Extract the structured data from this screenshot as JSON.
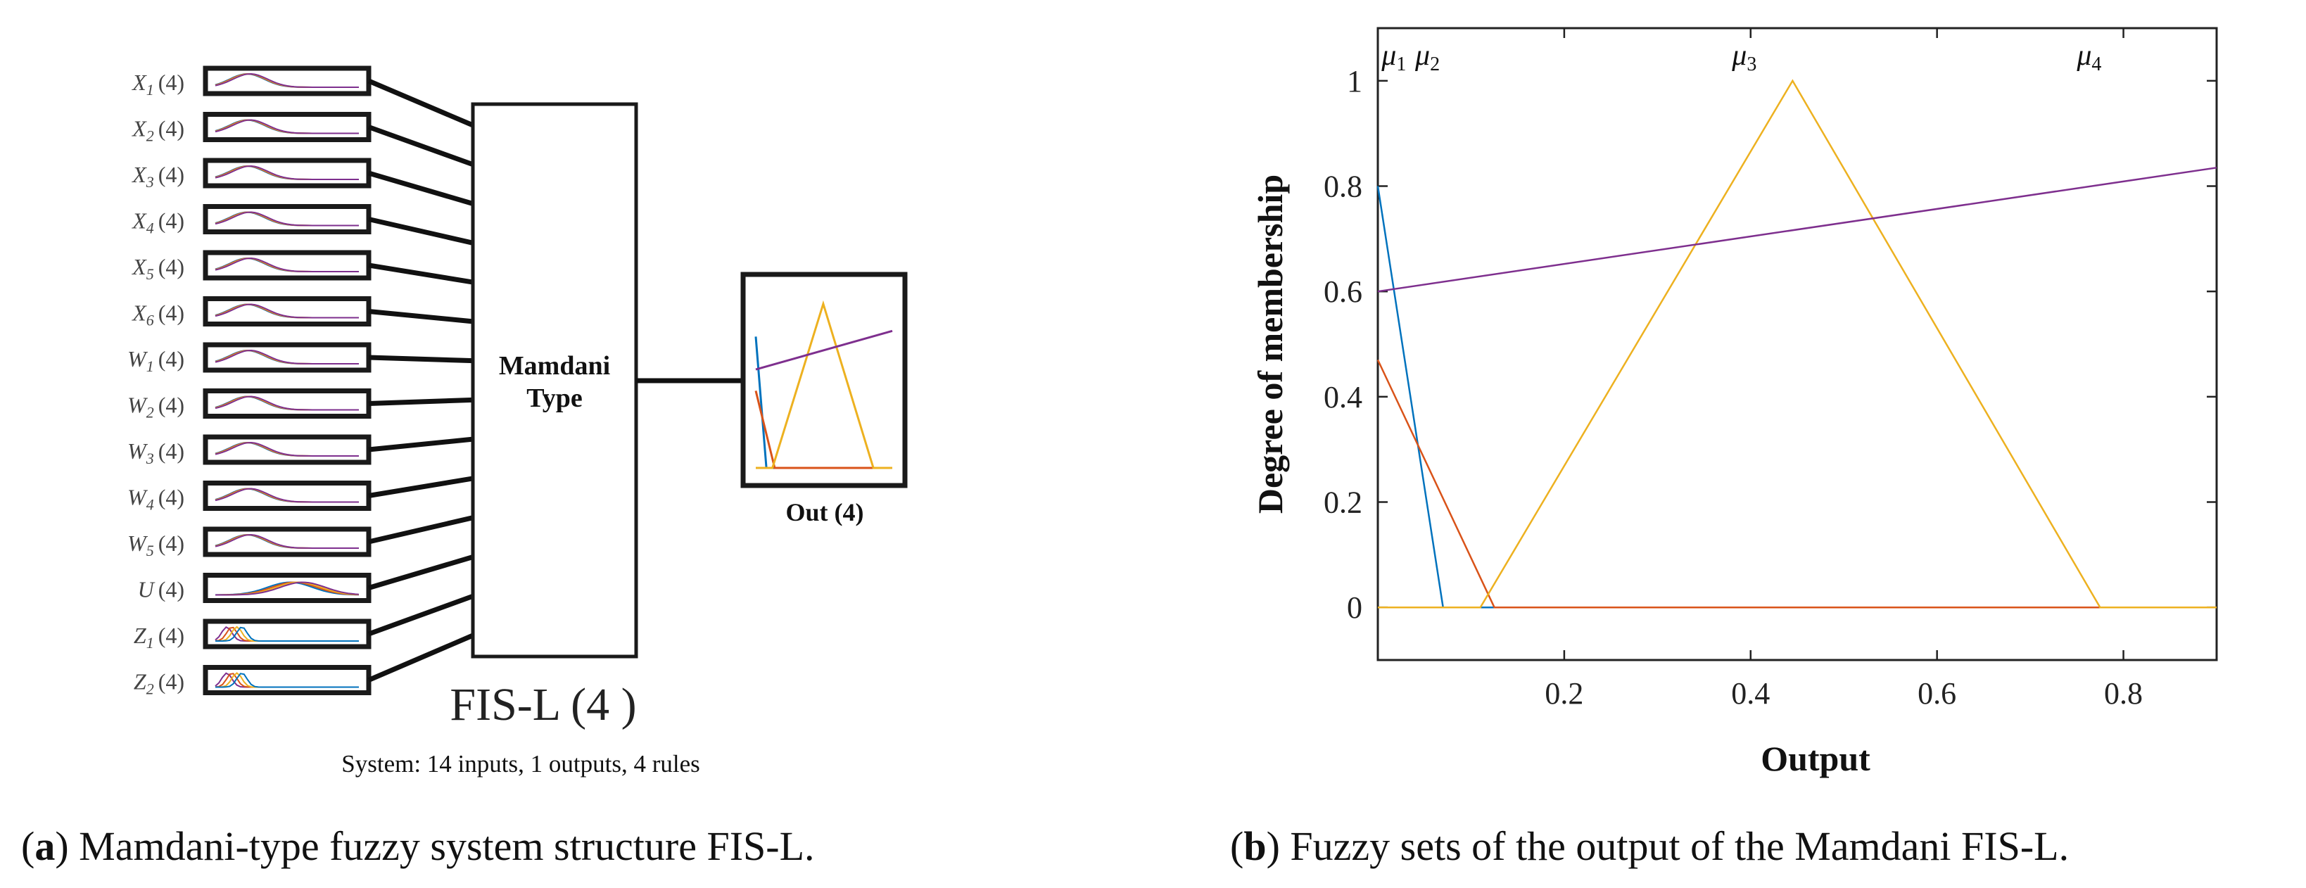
{
  "panel_a": {
    "inputs": [
      {
        "sym": "X",
        "sub": "1",
        "count": "(4)"
      },
      {
        "sym": "X",
        "sub": "2",
        "count": "(4)"
      },
      {
        "sym": "X",
        "sub": "3",
        "count": "(4)"
      },
      {
        "sym": "X",
        "sub": "4",
        "count": "(4)"
      },
      {
        "sym": "X",
        "sub": "5",
        "count": "(4)"
      },
      {
        "sym": "X",
        "sub": "6",
        "count": "(4)"
      },
      {
        "sym": "W",
        "sub": "1",
        "count": "(4)"
      },
      {
        "sym": "W",
        "sub": "2",
        "count": "(4)"
      },
      {
        "sym": "W",
        "sub": "3",
        "count": "(4)"
      },
      {
        "sym": "W",
        "sub": "4",
        "count": "(4)"
      },
      {
        "sym": "W",
        "sub": "5",
        "count": "(4)"
      },
      {
        "sym": "U",
        "sub": "",
        "count": "(4)"
      },
      {
        "sym": "Z",
        "sub": "1",
        "count": "(4)"
      },
      {
        "sym": "Z",
        "sub": "2",
        "count": "(4)"
      }
    ],
    "engine_line1": "Mamdani",
    "engine_line2": "Type",
    "output_label": "Out (4)",
    "system_name": "FIS-L (4 )",
    "system_summary": "System: 14 inputs, 1 outputs, 4 rules",
    "caption_letter": "a",
    "caption_text": " Mamdani-type fuzzy system structure FIS-L."
  },
  "panel_b": {
    "caption_letter": "b",
    "caption_text": " Fuzzy sets of the output of the Mamdani FIS-L."
  },
  "colors": {
    "blue": "#0072BD",
    "red": "#D95319",
    "yellow": "#EDB120",
    "purple": "#7E2F8E"
  },
  "chart_data": {
    "type": "line",
    "xlabel": "Output",
    "ylabel": "Degree of membership",
    "xlim": [
      0,
      0.9
    ],
    "ylim": [
      -0.1,
      1.1
    ],
    "xticks": [
      0.2,
      0.4,
      0.6,
      0.8
    ],
    "xtick_labels": [
      "0.2",
      "0.4",
      "0.6",
      "0.8"
    ],
    "yticks": [
      0,
      0.2,
      0.4,
      0.6,
      0.8,
      1
    ],
    "ytick_labels": [
      "0",
      "0.2",
      "0.4",
      "0.6",
      "0.8",
      "1"
    ],
    "grid": false,
    "annotations": [
      {
        "sym": "μ",
        "sub": "1",
        "x": 0.004
      },
      {
        "sym": "μ",
        "sub": "2",
        "x": 0.04
      },
      {
        "sym": "μ",
        "sub": "3",
        "x": 0.38
      },
      {
        "sym": "μ",
        "sub": "4",
        "x": 0.75
      }
    ],
    "series": [
      {
        "name": "mu1",
        "color_key": "blue",
        "x": [
          0,
          0.07,
          0.9
        ],
        "y": [
          0.8,
          0,
          0
        ]
      },
      {
        "name": "mu2",
        "color_key": "red",
        "x": [
          0,
          0.125,
          0.9
        ],
        "y": [
          0.47,
          0,
          0
        ]
      },
      {
        "name": "mu3",
        "color_key": "yellow",
        "x": [
          0,
          0.11,
          0.445,
          0.775,
          0.9
        ],
        "y": [
          0,
          0,
          1,
          0,
          0
        ]
      },
      {
        "name": "mu4",
        "color_key": "purple",
        "x": [
          0,
          0.9
        ],
        "y": [
          0.6,
          0.835
        ]
      }
    ]
  }
}
